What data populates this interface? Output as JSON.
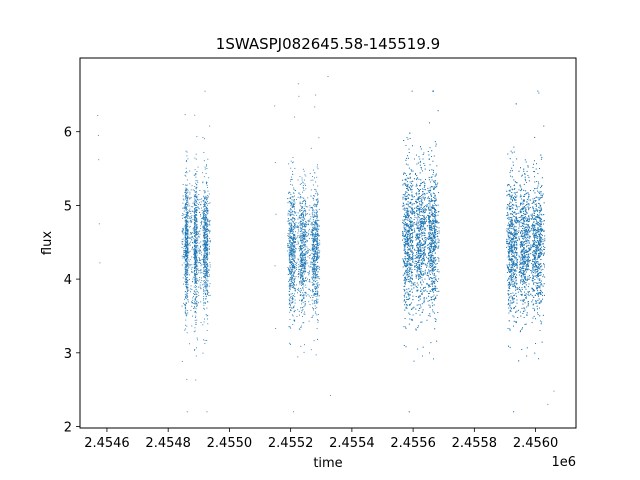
{
  "chart_data": {
    "type": "scatter",
    "title": "1SWASPJ082645.58-145519.9",
    "xlabel": "time",
    "ylabel": "flux",
    "x_offset_label": "1e6",
    "x_tick_labels": [
      "2.4546",
      "2.4548",
      "2.4550",
      "2.4552",
      "2.4554",
      "2.4556",
      "2.4558",
      "2.4560"
    ],
    "y_tick_labels": [
      "2",
      "3",
      "4",
      "5",
      "6"
    ],
    "x_ticks": [
      2454600,
      2454800,
      2455000,
      2455200,
      2455400,
      2455600,
      2455800,
      2456000
    ],
    "y_ticks": [
      2,
      3,
      4,
      5,
      6
    ],
    "xlim": [
      2454512,
      2456132
    ],
    "ylim": [
      1.98,
      7.0
    ],
    "grid": false,
    "marker_color": "#1f77b4",
    "series": [
      {
        "points": [
          [
            2454570,
            6.22
          ],
          [
            2454572,
            5.95
          ],
          [
            2454573,
            5.62
          ],
          [
            2454575,
            4.75
          ],
          [
            2454577,
            4.22
          ],
          [
            2455148,
            6.35
          ],
          [
            2455150,
            5.58
          ],
          [
            2455152,
            4.88
          ],
          [
            2455149,
            4.18
          ],
          [
            2455151,
            3.33
          ],
          [
            2455225,
            6.65
          ],
          [
            2455227,
            6.48
          ],
          [
            2455322,
            6.75
          ],
          [
            2455330,
            2.42
          ],
          [
            2456060,
            2.48
          ],
          [
            2456040,
            2.3
          ]
        ],
        "seasons": [
          {
            "start": 2454845,
            "end": 2454938,
            "count": 1900,
            "center": 4.45,
            "spread": 0.45,
            "dense_bands": [
              [
                2454855,
                2454865
              ],
              [
                2454885,
                2454895
              ],
              [
                2454915,
                2454930
              ]
            ]
          },
          {
            "start": 2455190,
            "end": 2455295,
            "count": 2000,
            "center": 4.4,
            "spread": 0.42,
            "dense_bands": [
              [
                2455195,
                2455215
              ],
              [
                2455230,
                2455250
              ],
              [
                2455270,
                2455290
              ]
            ]
          },
          {
            "start": 2455565,
            "end": 2455685,
            "count": 3800,
            "center": 4.55,
            "spread": 0.48,
            "dense_bands": [
              [
                2455570,
                2455600
              ],
              [
                2455610,
                2455640
              ],
              [
                2455650,
                2455675
              ]
            ]
          },
          {
            "start": 2455905,
            "end": 2456030,
            "count": 3800,
            "center": 4.45,
            "spread": 0.45,
            "dense_bands": [
              [
                2455910,
                2455940
              ],
              [
                2455950,
                2455980
              ],
              [
                2455990,
                2456020
              ]
            ]
          }
        ]
      }
    ]
  }
}
